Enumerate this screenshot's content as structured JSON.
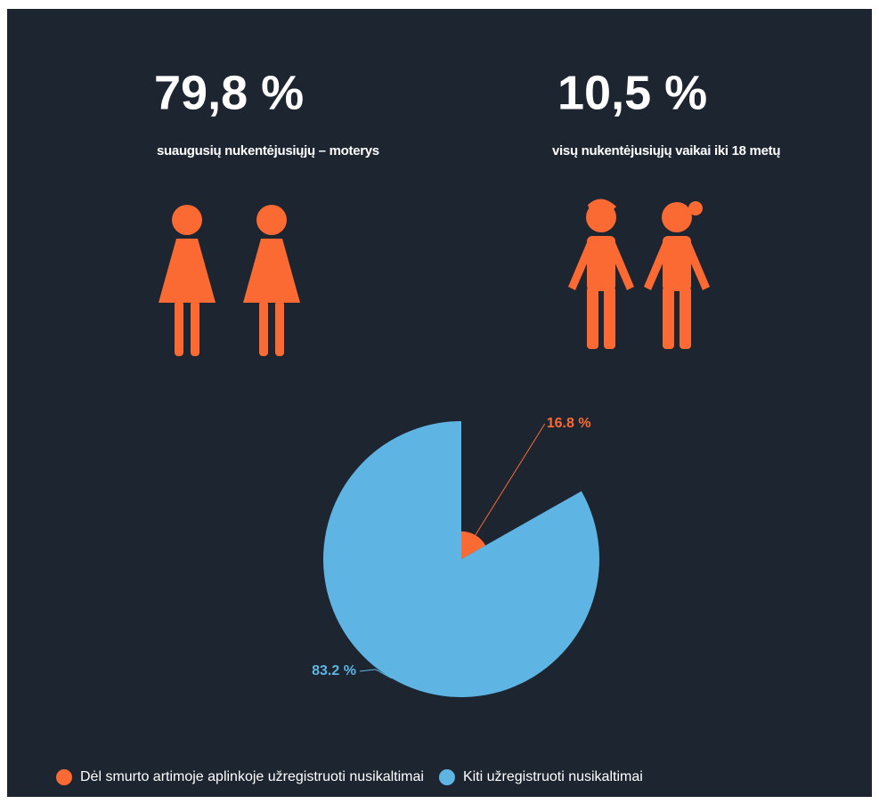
{
  "stats": [
    {
      "value": "79,8 %",
      "label": "suaugusių nukentėjusiųjų – moterys"
    },
    {
      "value": "10,5 %",
      "label": "visų nukentėjusiųjų vaikai iki 18 metų"
    }
  ],
  "chart_data": {
    "type": "pie",
    "radius_by_value": true,
    "start_angle": 0,
    "categories": [
      "Dėl smurto artimoje aplinkoje užregistruoti nusikaltimai",
      "Kiti užregistruoti nusikaltimai"
    ],
    "values": [
      16.8,
      83.2
    ],
    "value_labels": [
      "16.8 %",
      "83.2 %"
    ],
    "colors": [
      "#fb6a33",
      "#5eb5e3"
    ],
    "legend": "bottom"
  }
}
